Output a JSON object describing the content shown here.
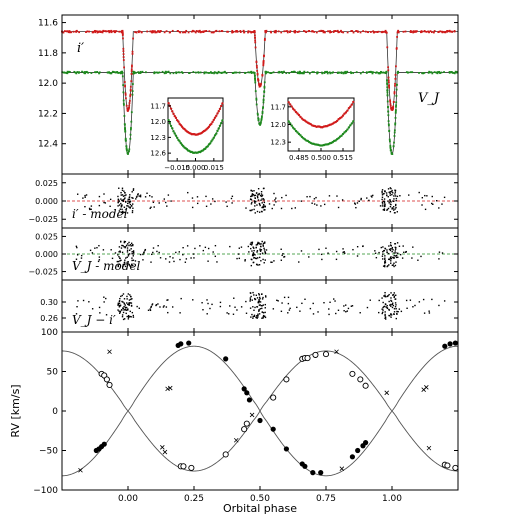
{
  "chart_data": [
    {
      "type": "line",
      "panel": "light-curves",
      "ylim": [
        12.6,
        11.55
      ],
      "yticks": [
        "11.6",
        "11.8",
        "12.0",
        "12.2",
        "12.4"
      ],
      "labels": {
        "top": "i′",
        "bottom": "V_J"
      },
      "series": [
        {
          "name": "i′",
          "color": "#d11a1a",
          "baseline": 11.66,
          "primary_min": 12.18,
          "secondary_min": 12.02
        },
        {
          "name": "V_J",
          "color": "#1e8a1e",
          "baseline": 11.93,
          "primary_min": 12.47,
          "secondary_min": 12.27
        }
      ],
      "insets": [
        {
          "xlim": [
            -0.02,
            0.02
          ],
          "xticks": [
            "−0.015",
            "0.000",
            "0.015"
          ],
          "ylim": [
            12.6,
            11.6
          ],
          "yticks": [
            "11.7",
            "12.0",
            "12.3",
            "12.6"
          ]
        },
        {
          "xlim": [
            0.48,
            0.52
          ],
          "xticks": [
            "0.485",
            "0.500",
            "0.515"
          ],
          "ylim": [
            12.35,
            11.62
          ],
          "yticks": [
            "11.7",
            "12.0",
            "12.3"
          ]
        }
      ]
    },
    {
      "type": "scatter",
      "panel": "residuals-i",
      "label": "i′ - model",
      "ylim": [
        -0.037,
        0.037
      ],
      "yticks": [
        "0.025",
        "0.000",
        "−0.025"
      ],
      "zero_line_color": "#d11a1a"
    },
    {
      "type": "scatter",
      "panel": "residuals-V",
      "label": "V_J - model",
      "ylim": [
        -0.037,
        0.037
      ],
      "yticks": [
        "0.025",
        "0.000",
        "−0.025"
      ],
      "zero_line_color": "#1e8a1e"
    },
    {
      "type": "scatter",
      "panel": "color-index",
      "label": "V_J − i′",
      "ylim": [
        0.225,
        0.355
      ],
      "yticks": [
        "0.30",
        "0.26"
      ]
    },
    {
      "type": "line",
      "panel": "radial-velocity",
      "ylabel": "RV [km/s]",
      "xlabel": "Orbital phase",
      "xlim": [
        -0.25,
        1.25
      ],
      "xticks": [
        "0.00",
        "0.25",
        "0.50",
        "0.75",
        "1.00"
      ],
      "ylim": [
        -100,
        100
      ],
      "yticks": [
        "100",
        "50",
        "0",
        "−50",
        "−100"
      ],
      "series": [
        {
          "name": "primary",
          "K": 82,
          "gamma": 0,
          "marker": "filled-circle"
        },
        {
          "name": "secondary",
          "K": 76,
          "gamma": 0,
          "marker": "open-circle"
        }
      ],
      "primary_points": [
        [
          -0.12,
          -50
        ],
        [
          -0.11,
          -48
        ],
        [
          -0.1,
          -45
        ],
        [
          -0.09,
          -42
        ],
        [
          0.19,
          83
        ],
        [
          0.2,
          85
        ],
        [
          0.23,
          86
        ],
        [
          0.37,
          66
        ],
        [
          0.45,
          23
        ],
        [
          0.46,
          14
        ],
        [
          0.5,
          -12
        ],
        [
          0.55,
          -23
        ],
        [
          0.6,
          -48
        ],
        [
          0.66,
          -67
        ],
        [
          0.67,
          -70
        ],
        [
          0.7,
          -78
        ],
        [
          0.73,
          -78
        ],
        [
          0.85,
          -58
        ],
        [
          0.87,
          -50
        ],
        [
          0.89,
          -44
        ],
        [
          0.9,
          -40
        ],
        [
          1.2,
          82
        ],
        [
          1.22,
          85
        ],
        [
          1.24,
          86
        ],
        [
          0.44,
          28
        ]
      ],
      "secondary_points": [
        [
          -0.1,
          47
        ],
        [
          -0.09,
          45
        ],
        [
          -0.08,
          40
        ],
        [
          -0.07,
          33
        ],
        [
          0.2,
          -70
        ],
        [
          0.21,
          -70
        ],
        [
          0.24,
          -72
        ],
        [
          0.37,
          -55
        ],
        [
          0.44,
          -23
        ],
        [
          0.45,
          -16
        ],
        [
          0.55,
          17
        ],
        [
          0.6,
          40
        ],
        [
          0.66,
          66
        ],
        [
          0.67,
          67
        ],
        [
          0.68,
          67
        ],
        [
          0.71,
          71
        ],
        [
          0.75,
          72
        ],
        [
          0.85,
          47
        ],
        [
          0.88,
          40
        ],
        [
          0.9,
          32
        ],
        [
          1.2,
          -68
        ],
        [
          1.21,
          -69
        ],
        [
          1.24,
          -72
        ]
      ],
      "cross_points": [
        [
          -0.07,
          75
        ],
        [
          -0.18,
          -75
        ],
        [
          0.13,
          -46
        ],
        [
          0.14,
          -52
        ],
        [
          0.16,
          29
        ],
        [
          0.15,
          28
        ],
        [
          0.41,
          -37
        ],
        [
          0.47,
          -5
        ],
        [
          0.79,
          75
        ],
        [
          0.81,
          -73
        ],
        [
          0.98,
          23
        ],
        [
          1.12,
          27
        ],
        [
          1.13,
          30
        ],
        [
          1.14,
          -47
        ]
      ]
    }
  ]
}
